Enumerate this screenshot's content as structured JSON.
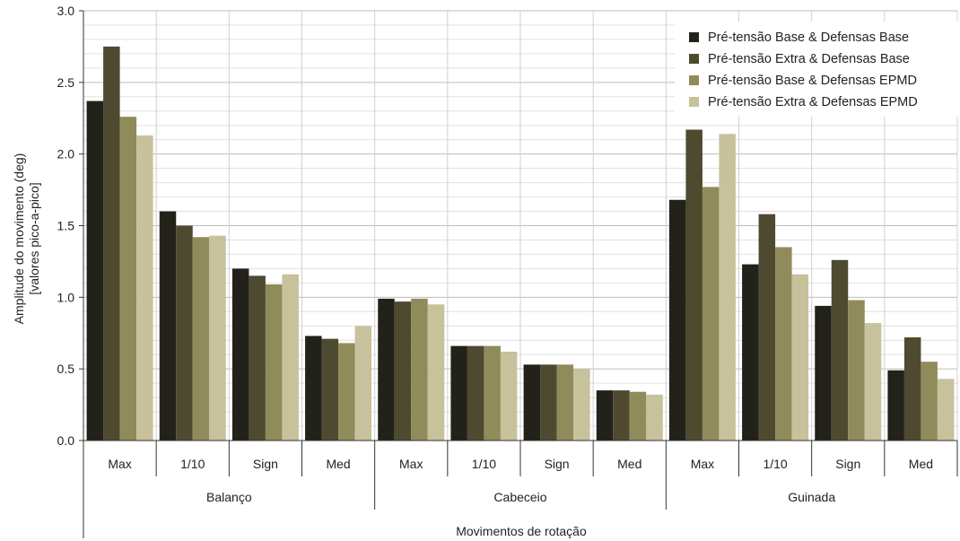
{
  "chart_data": {
    "type": "bar",
    "ylabel_lines": [
      "Amplitude do movimento (deg)",
      "[valores pico-a-pico]"
    ],
    "xlabel": "Movimentos de rotação",
    "ylim": [
      0,
      3.0
    ],
    "yticks": [
      "0.0",
      "0.5",
      "1.0",
      "1.5",
      "2.0",
      "2.5",
      "3.0"
    ],
    "ytick_values": [
      0,
      0.5,
      1.0,
      1.5,
      2.0,
      2.5,
      3.0
    ],
    "minor_grid_step": 0.1,
    "grid": true,
    "legend_position": "top-right",
    "groups": [
      "Balanço",
      "Cabeceio",
      "Guinada"
    ],
    "categories": [
      "Max",
      "1/10",
      "Sign",
      "Med",
      "Max",
      "1/10",
      "Sign",
      "Med",
      "Max",
      "1/10",
      "Sign",
      "Med"
    ],
    "series": [
      {
        "name": "Pré-tensão Base & Defensas Base",
        "color": "#22221a",
        "values": [
          2.37,
          1.6,
          1.2,
          0.73,
          0.99,
          0.66,
          0.53,
          0.35,
          1.68,
          1.23,
          0.94,
          0.49
        ]
      },
      {
        "name": "Pré-tensão Extra & Defensas Base",
        "color": "#4d4a30",
        "values": [
          2.75,
          1.5,
          1.15,
          0.71,
          0.97,
          0.66,
          0.53,
          0.35,
          2.17,
          1.58,
          1.26,
          0.72
        ]
      },
      {
        "name": "Pré-tensão Base & Defensas EPMD",
        "color": "#908b5a",
        "values": [
          2.26,
          1.42,
          1.09,
          0.68,
          0.99,
          0.66,
          0.53,
          0.34,
          1.77,
          1.35,
          0.98,
          0.55
        ]
      },
      {
        "name": "Pré-tensão Extra & Defensas EPMD",
        "color": "#c7c19c",
        "values": [
          2.13,
          1.43,
          1.16,
          0.8,
          0.95,
          0.62,
          0.5,
          0.32,
          2.14,
          1.16,
          0.82,
          0.43
        ]
      }
    ]
  }
}
